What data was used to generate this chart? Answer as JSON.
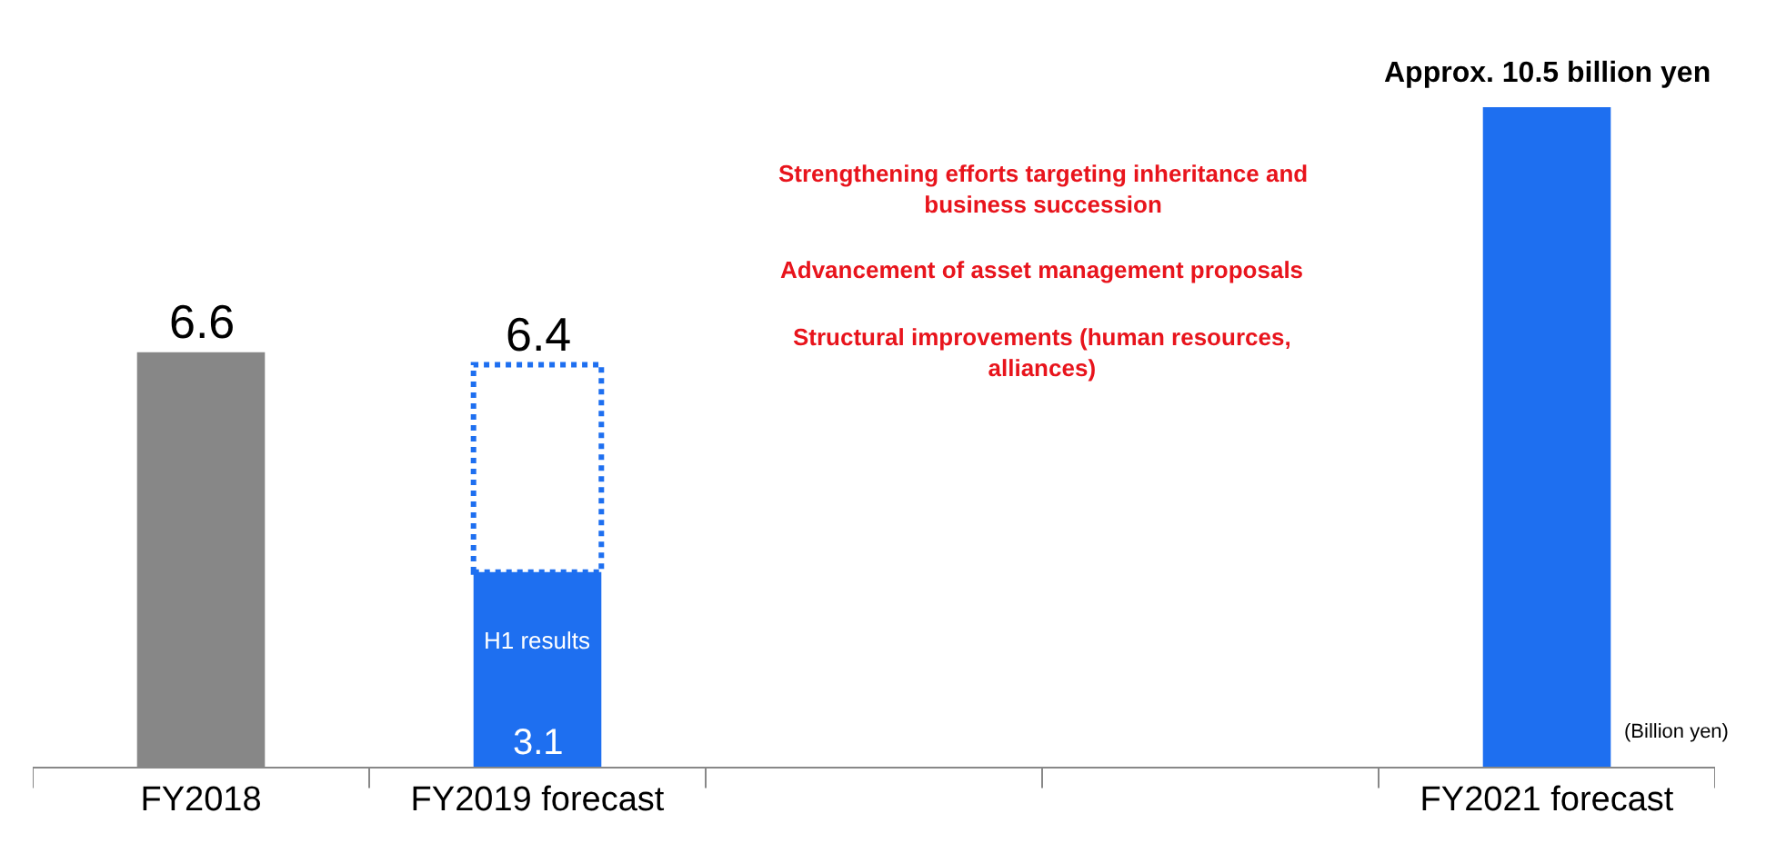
{
  "chart_data": {
    "type": "bar",
    "stacked": true,
    "categories": [
      "FY2018",
      "FY2019 forecast",
      null,
      null,
      "FY2021 forecast"
    ],
    "series": [
      {
        "colors": [
          "#878787",
          "#1e6ff0",
          null,
          null,
          "#1e6ff0"
        ],
        "values": [
          6.6,
          3.1,
          null,
          null,
          10.5
        ],
        "value_labels": [
          "6.6",
          "3.1",
          null,
          null,
          null
        ]
      },
      {
        "color": "#1e6ff0",
        "line_style": "dotted",
        "values": [
          null,
          3.3,
          null,
          null,
          null
        ]
      }
    ],
    "totals": [
      null,
      "6.4",
      null,
      null,
      "Approx. 10.5 billion yen"
    ],
    "tick_labels": "x",
    "annotations": [
      "Strengthening efforts targeting inheritance and business succession",
      "Advancement of asset management proposals",
      "Structural improvements (human resources, alliances)",
      "(Billion yen)",
      "H1 results"
    ]
  }
}
